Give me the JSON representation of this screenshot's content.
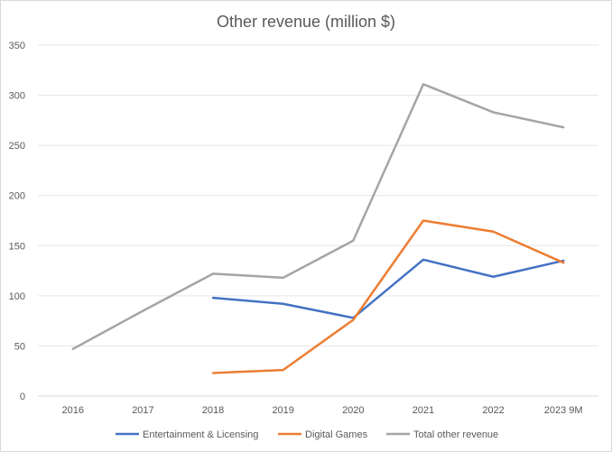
{
  "chart_data": {
    "type": "line",
    "title": "Other revenue (million $)",
    "xlabel": "",
    "ylabel": "",
    "categories": [
      "2016",
      "2017",
      "2018",
      "2019",
      "2020",
      "2021",
      "2022",
      "2023 9M"
    ],
    "ylim": [
      0,
      350
    ],
    "yticks": [
      0,
      50,
      100,
      150,
      200,
      250,
      300,
      350
    ],
    "grid": true,
    "legend_position": "bottom",
    "series": [
      {
        "name": "Entertainment & Licensing",
        "color": "#4472c4",
        "values": [
          null,
          null,
          98,
          92,
          78,
          136,
          119,
          135
        ]
      },
      {
        "name": "Digital Games",
        "color": "#ed7d31",
        "values": [
          null,
          null,
          23,
          26,
          76,
          175,
          164,
          133
        ]
      },
      {
        "name": "Total other revenue",
        "color": "#a5a5a5",
        "values": [
          47,
          85,
          122,
          118,
          155,
          311,
          283,
          268
        ]
      }
    ]
  }
}
